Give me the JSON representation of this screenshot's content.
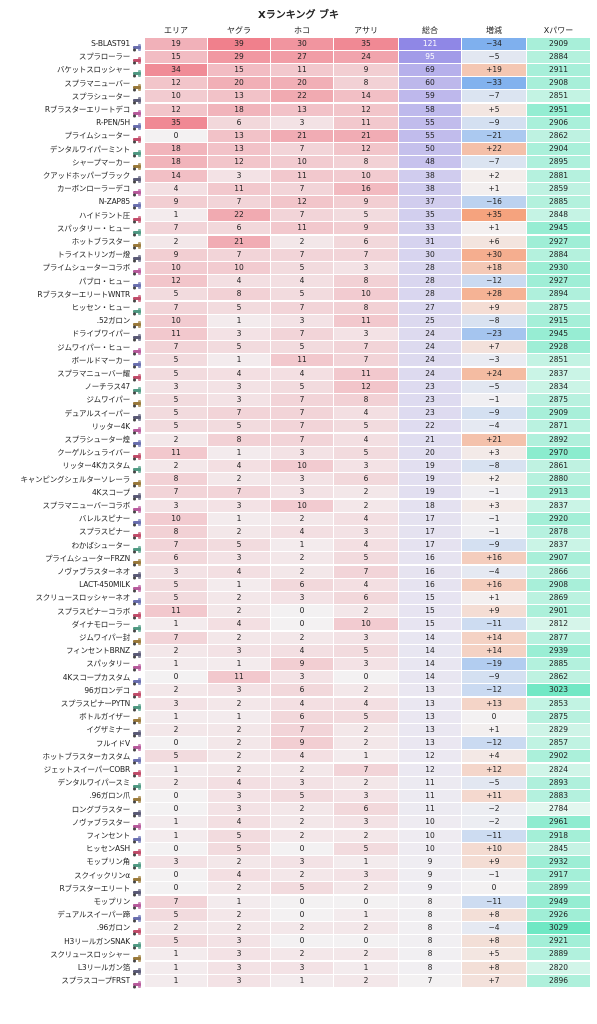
{
  "title": "Xランキング ブキ",
  "columns": [
    "エリア",
    "ヤグラ",
    "ホコ",
    "アサリ",
    "総合",
    "増減",
    "Xパワー"
  ],
  "chart_data": {
    "type": "table",
    "title": "Xランキング ブキ",
    "columns": [
      "エリア",
      "ヤグラ",
      "ホコ",
      "アサリ",
      "総合",
      "増減",
      "Xパワー"
    ],
    "rows": [
      {
        "name": "S-BLAST91",
        "values": [
          19,
          39,
          30,
          35,
          121,
          -34,
          2909
        ]
      },
      {
        "name": "スプラローラー",
        "values": [
          15,
          29,
          27,
          24,
          95,
          -5,
          2884
        ]
      },
      {
        "name": "バケットスロッシャー",
        "values": [
          34,
          15,
          11,
          9,
          69,
          19,
          2911
        ]
      },
      {
        "name": "スプラマニューバー",
        "values": [
          12,
          20,
          20,
          8,
          60,
          -33,
          2908
        ]
      },
      {
        "name": "スプラシューター",
        "values": [
          10,
          13,
          22,
          14,
          59,
          -7,
          2851
        ]
      },
      {
        "name": "Rブラスターエリートデコ",
        "values": [
          12,
          18,
          13,
          12,
          58,
          5,
          2951
        ]
      },
      {
        "name": "R-PEN/5H",
        "values": [
          35,
          6,
          3,
          11,
          55,
          -9,
          2906
        ]
      },
      {
        "name": "プライムシューター",
        "values": [
          0,
          13,
          21,
          21,
          55,
          -21,
          2862
        ]
      },
      {
        "name": "デンタルワイパーミント",
        "values": [
          18,
          13,
          7,
          12,
          50,
          22,
          2904
        ]
      },
      {
        "name": "シャープマーカー",
        "values": [
          18,
          12,
          10,
          8,
          48,
          -7,
          2895
        ]
      },
      {
        "name": "クアッドホッパーブラック",
        "values": [
          14,
          3,
          11,
          10,
          38,
          2,
          2881
        ]
      },
      {
        "name": "カーボンローラーデコ",
        "values": [
          4,
          11,
          7,
          16,
          38,
          1,
          2859
        ]
      },
      {
        "name": "N-ZAP85",
        "values": [
          9,
          7,
          12,
          9,
          37,
          -16,
          2885
        ]
      },
      {
        "name": "ハイドラント圧",
        "values": [
          1,
          22,
          7,
          5,
          35,
          35,
          2848
        ]
      },
      {
        "name": "スパッタリー・ヒュー",
        "values": [
          7,
          6,
          11,
          9,
          33,
          1,
          2945
        ]
      },
      {
        "name": "ホットブラスター",
        "values": [
          2,
          21,
          2,
          6,
          31,
          6,
          2927
        ]
      },
      {
        "name": "トライストリンガー燈",
        "values": [
          9,
          7,
          7,
          7,
          30,
          30,
          2884
        ]
      },
      {
        "name": "プライムシューターコラボ",
        "values": [
          10,
          10,
          5,
          3,
          28,
          18,
          2930
        ]
      },
      {
        "name": "パブロ・ヒュー",
        "values": [
          12,
          4,
          4,
          8,
          28,
          -12,
          2927
        ]
      },
      {
        "name": "RブラスターエリートWNTR",
        "values": [
          5,
          8,
          5,
          10,
          28,
          28,
          2894
        ]
      },
      {
        "name": "ヒッセン・ヒュー",
        "values": [
          7,
          5,
          7,
          8,
          27,
          9,
          2875
        ]
      },
      {
        "name": ".52ガロン",
        "values": [
          10,
          1,
          3,
          11,
          25,
          -8,
          2915
        ]
      },
      {
        "name": "ドライブワイパー",
        "values": [
          11,
          3,
          7,
          3,
          24,
          -23,
          2945
        ]
      },
      {
        "name": "ジムワイパー・ヒュー",
        "values": [
          7,
          5,
          5,
          7,
          24,
          7,
          2928
        ]
      },
      {
        "name": "ボールドマーカー",
        "values": [
          5,
          1,
          11,
          7,
          24,
          -3,
          2851
        ]
      },
      {
        "name": "スプラマニューバー耀",
        "values": [
          5,
          4,
          4,
          11,
          24,
          24,
          2837
        ]
      },
      {
        "name": "ノーチラス47",
        "values": [
          3,
          3,
          5,
          12,
          23,
          -5,
          2834
        ]
      },
      {
        "name": "ジムワイパー",
        "values": [
          5,
          3,
          7,
          8,
          23,
          -1,
          2875
        ]
      },
      {
        "name": "デュアルスイーパー",
        "values": [
          5,
          7,
          7,
          4,
          23,
          -9,
          2909
        ]
      },
      {
        "name": "リッター4K",
        "values": [
          5,
          5,
          7,
          5,
          22,
          -4,
          2871
        ]
      },
      {
        "name": "スプラシューター煌",
        "values": [
          2,
          8,
          7,
          4,
          21,
          21,
          2892
        ]
      },
      {
        "name": "クーゲルシュライバー",
        "values": [
          11,
          1,
          3,
          5,
          20,
          3,
          2970
        ]
      },
      {
        "name": "リッター4Kカスタム",
        "values": [
          2,
          4,
          10,
          3,
          19,
          -8,
          2861
        ]
      },
      {
        "name": "キャンピングシェルターソレーラ",
        "values": [
          8,
          2,
          3,
          6,
          19,
          2,
          2880
        ]
      },
      {
        "name": "4Kスコープ",
        "values": [
          7,
          7,
          3,
          2,
          19,
          -1,
          2913
        ]
      },
      {
        "name": "スプラマニューバーコラボ",
        "values": [
          3,
          3,
          10,
          2,
          18,
          3,
          2837
        ]
      },
      {
        "name": "バレルスピナー",
        "values": [
          10,
          1,
          2,
          4,
          17,
          -1,
          2920
        ]
      },
      {
        "name": "スプラスピナー",
        "values": [
          8,
          2,
          4,
          3,
          17,
          -1,
          2878
        ]
      },
      {
        "name": "わかばシューター",
        "values": [
          7,
          5,
          1,
          4,
          17,
          -9,
          2837
        ]
      },
      {
        "name": "プライムシューターFRZN",
        "values": [
          6,
          3,
          2,
          5,
          16,
          16,
          2907
        ]
      },
      {
        "name": "ノヴァブラスターネオ",
        "values": [
          3,
          4,
          2,
          7,
          16,
          -4,
          2866
        ]
      },
      {
        "name": "LACT-450MILK",
        "values": [
          5,
          1,
          6,
          4,
          16,
          16,
          2908
        ]
      },
      {
        "name": "スクリュースロッシャーネオ",
        "values": [
          5,
          2,
          3,
          6,
          15,
          1,
          2869
        ]
      },
      {
        "name": "スプラスピナーコラボ",
        "values": [
          11,
          2,
          0,
          2,
          15,
          9,
          2901
        ]
      },
      {
        "name": "ダイナモローラー",
        "values": [
          1,
          4,
          0,
          10,
          15,
          -11,
          2812
        ]
      },
      {
        "name": "ジムワイパー封",
        "values": [
          7,
          2,
          2,
          3,
          14,
          14,
          2877
        ]
      },
      {
        "name": "フィンセントBRNZ",
        "values": [
          2,
          3,
          4,
          5,
          14,
          14,
          2939
        ]
      },
      {
        "name": "スパッタリー",
        "values": [
          1,
          1,
          9,
          3,
          14,
          -19,
          2885
        ]
      },
      {
        "name": "4Kスコープカスタム",
        "values": [
          0,
          11,
          3,
          0,
          14,
          -9,
          2862
        ]
      },
      {
        "name": "96ガロンデコ",
        "values": [
          2,
          3,
          6,
          2,
          13,
          -12,
          3023
        ]
      },
      {
        "name": "スプラスピナーPYTN",
        "values": [
          3,
          2,
          4,
          4,
          13,
          13,
          2853
        ]
      },
      {
        "name": "ボトルガイザー",
        "values": [
          1,
          1,
          6,
          5,
          13,
          0,
          2875
        ]
      },
      {
        "name": "イグザミナー",
        "values": [
          2,
          2,
          7,
          2,
          13,
          1,
          2829
        ]
      },
      {
        "name": "フルイドV",
        "values": [
          0,
          2,
          9,
          2,
          13,
          -12,
          2857
        ]
      },
      {
        "name": "ホットブラスターカスタム",
        "values": [
          5,
          2,
          4,
          1,
          12,
          4,
          2902
        ]
      },
      {
        "name": "ジェットスイーパーCOBR",
        "values": [
          1,
          2,
          2,
          7,
          12,
          12,
          2824
        ]
      },
      {
        "name": "デンタルワイパースミ",
        "values": [
          2,
          4,
          3,
          2,
          11,
          -5,
          2893
        ]
      },
      {
        "name": ".96ガロン爪",
        "values": [
          0,
          3,
          5,
          3,
          11,
          11,
          2883
        ]
      },
      {
        "name": "ロングブラスター",
        "values": [
          0,
          3,
          2,
          6,
          11,
          -2,
          2784
        ]
      },
      {
        "name": "ノヴァブラスター",
        "values": [
          1,
          4,
          2,
          3,
          10,
          -2,
          2961
        ]
      },
      {
        "name": "フィンセント",
        "values": [
          1,
          5,
          2,
          2,
          10,
          -11,
          2918
        ]
      },
      {
        "name": "ヒッセンASH",
        "values": [
          0,
          5,
          0,
          5,
          10,
          10,
          2845
        ]
      },
      {
        "name": "モップリン角",
        "values": [
          3,
          2,
          3,
          1,
          9,
          9,
          2932
        ]
      },
      {
        "name": "スクイックリンα",
        "values": [
          0,
          4,
          2,
          3,
          9,
          -1,
          2917
        ]
      },
      {
        "name": "Rブラスターエリート",
        "values": [
          0,
          2,
          5,
          2,
          9,
          0,
          2899
        ]
      },
      {
        "name": "モップリン",
        "values": [
          7,
          1,
          0,
          0,
          8,
          -11,
          2949
        ]
      },
      {
        "name": "デュアルスイーパー蹄",
        "values": [
          5,
          2,
          0,
          1,
          8,
          8,
          2926
        ]
      },
      {
        "name": ".96ガロン",
        "values": [
          2,
          2,
          2,
          2,
          8,
          -4,
          3029
        ]
      },
      {
        "name": "H3リールガンSNAK",
        "values": [
          5,
          3,
          0,
          0,
          8,
          8,
          2921
        ]
      },
      {
        "name": "スクリュースロッシャー",
        "values": [
          1,
          3,
          2,
          2,
          8,
          5,
          2889
        ]
      },
      {
        "name": "L3リールガン箔",
        "values": [
          1,
          3,
          3,
          1,
          8,
          8,
          2820
        ]
      },
      {
        "name": "スプラスコープFRST",
        "values": [
          1,
          3,
          1,
          2,
          7,
          7,
          2896
        ]
      }
    ]
  },
  "colors": {
    "mode_scale_high": "#f0808c",
    "total_scale_high": "#8f87e6",
    "delta_positive": "#f5a37e",
    "delta_negative": "#7fb0ee",
    "xpower_high": "#6fe8c4"
  },
  "icon_name": "weapon-icon"
}
